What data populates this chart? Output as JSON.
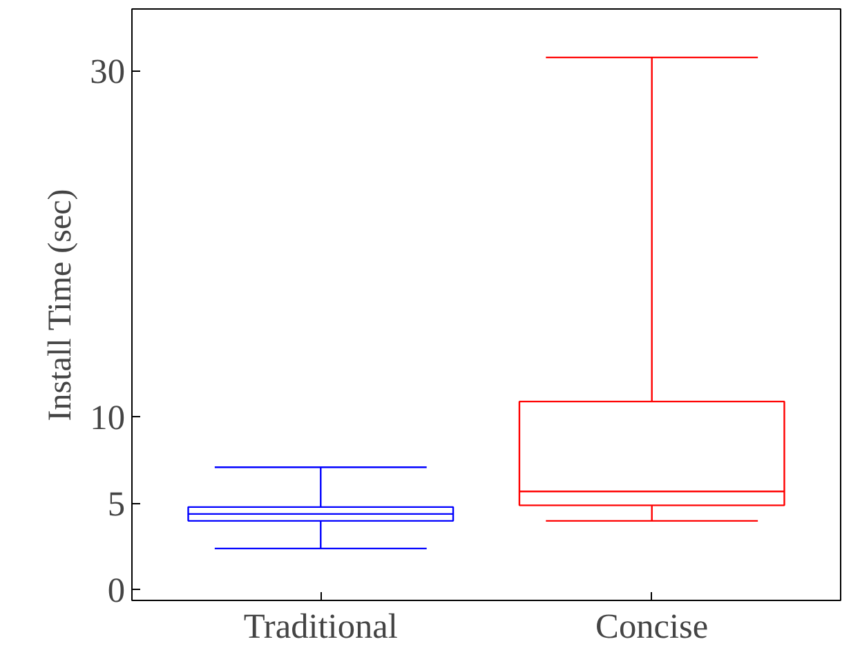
{
  "chart_data": {
    "type": "box",
    "ylabel": "Install Time (sec)",
    "categories": [
      "Traditional",
      "Concise"
    ],
    "colors": [
      "#0000ff",
      "#ff0000"
    ],
    "boxes": [
      {
        "low": 2.4,
        "q1": 4.0,
        "median": 4.4,
        "q3": 4.8,
        "high": 7.1
      },
      {
        "low": 4.0,
        "q1": 4.9,
        "median": 5.7,
        "q3": 10.9,
        "high": 30.8
      }
    ],
    "ylim": [
      -0.6,
      33.6
    ],
    "yticks": [
      0,
      5,
      10,
      30
    ],
    "grid": false
  }
}
